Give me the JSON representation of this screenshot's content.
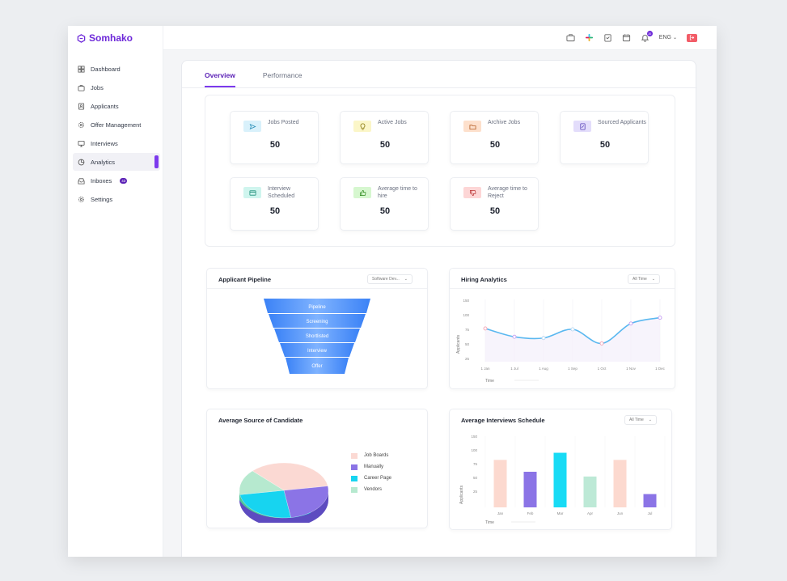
{
  "app": {
    "brand": "Somhako",
    "colors": {
      "accent": "#7c3aed",
      "brand": "#6d28d9",
      "danger": "#f25c67"
    }
  },
  "sidebar": {
    "items": [
      {
        "label": "Dashboard",
        "icon": "dashboard-icon",
        "active": false
      },
      {
        "label": "Jobs",
        "icon": "briefcase-icon",
        "active": false
      },
      {
        "label": "Applicants",
        "icon": "person-icon",
        "active": false
      },
      {
        "label": "Offer Management",
        "icon": "gear-icon",
        "active": false
      },
      {
        "label": "Interviews",
        "icon": "monitor-icon",
        "active": false
      },
      {
        "label": "Analytics",
        "icon": "pie-chart-icon",
        "active": true
      },
      {
        "label": "Inboxes",
        "icon": "inbox-icon",
        "active": false,
        "badge": "43"
      },
      {
        "label": "Settings",
        "icon": "gear-icon",
        "active": false
      }
    ]
  },
  "topbar": {
    "icons": [
      "briefcase-icon",
      "slack-icon",
      "clipboard-icon",
      "calendar-icon",
      "bell-icon"
    ],
    "notification_badge": "20",
    "language": "ENG",
    "logout_icon": "logout-icon"
  },
  "tabs": [
    {
      "label": "Overview",
      "active": true
    },
    {
      "label": "Performance",
      "active": false
    }
  ],
  "stats": [
    {
      "label": "Jobs Posted",
      "value": "50",
      "icon": "send-icon",
      "color": "#d9f1fb"
    },
    {
      "label": "Active Jobs",
      "value": "50",
      "icon": "bulb-icon",
      "color": "#fbf6c8"
    },
    {
      "label": "Archive Jobs",
      "value": "50",
      "icon": "folder-icon",
      "color": "#fde0cc"
    },
    {
      "label": "Sourced Applicants",
      "value": "50",
      "icon": "document-icon",
      "color": "#e3ddfb"
    },
    {
      "label": "Interview Scheduled",
      "value": "50",
      "icon": "window-icon",
      "color": "#cff5ee"
    },
    {
      "label": "Average time to hire",
      "value": "50",
      "icon": "thumbs-up-icon",
      "color": "#d6f7cf"
    },
    {
      "label": "Average time to Reject",
      "value": "50",
      "icon": "thumbs-down-icon",
      "color": "#fdd6d6"
    }
  ],
  "pipeline": {
    "title": "Applicant Pipeline",
    "dropdown": "Software Dev...",
    "stages": [
      "Pipeline",
      "Screening",
      "Shortlisted",
      "Interview",
      "Offer"
    ]
  },
  "hiring": {
    "title": "Hiring Analytics",
    "dropdown": "All Time",
    "yticks": [
      "150",
      "100",
      "75",
      "50",
      "25"
    ],
    "ylabel": "Applicants",
    "xlabel": "Time"
  },
  "source": {
    "title": "Average Source of Candidate",
    "legend": [
      {
        "label": "Job Boards",
        "color": "#fbd9d3"
      },
      {
        "label": "Manually",
        "color": "#8b74e6"
      },
      {
        "label": "Career Page",
        "color": "#17d4f0"
      },
      {
        "label": "Vendors",
        "color": "#b6e9cf"
      }
    ]
  },
  "schedule": {
    "title": "Average Interviews Schedule",
    "dropdown": "All Time",
    "yticks": [
      "150",
      "100",
      "75",
      "50",
      "25"
    ],
    "ylabel": "Applicants",
    "xlabel": "Time"
  },
  "chart_data": [
    {
      "type": "line",
      "title": "Hiring Analytics",
      "x": [
        "1 Jan",
        "1 Jul",
        "1 Aug",
        "1 Sep",
        "1 Oct",
        "1 Nov",
        "1 Dec"
      ],
      "series": [
        {
          "values": [
            80,
            60,
            57,
            78,
            44,
            92,
            106
          ]
        }
      ],
      "ylabel": "Applicants",
      "xlabel": "Time",
      "ylim": [
        0,
        150
      ]
    },
    {
      "type": "pie",
      "title": "Average Source of Candidate",
      "categories": [
        "Job Boards",
        "Manually",
        "Career Page",
        "Vendors"
      ],
      "values": [
        35,
        25,
        25,
        15
      ]
    },
    {
      "type": "bar",
      "title": "Average Interviews Schedule",
      "categories": [
        "Jan",
        "Feb",
        "Mar",
        "Apr",
        "Jun",
        "Jul"
      ],
      "values": [
        100,
        75,
        115,
        65,
        100,
        28
      ],
      "colors": [
        "#fcd9cf",
        "#8b74e6",
        "#18dbf5",
        "#bde9d6",
        "#fcd9cf",
        "#8b74e6"
      ],
      "ylabel": "Applicants",
      "xlabel": "Time",
      "ylim": [
        0,
        150
      ]
    }
  ]
}
